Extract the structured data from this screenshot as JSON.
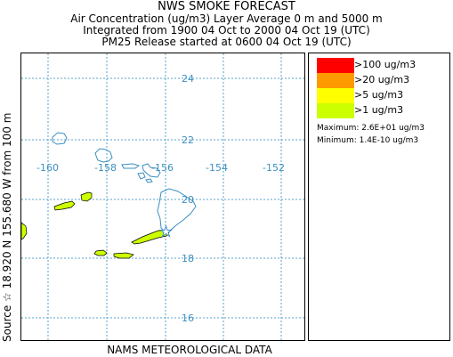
{
  "header": {
    "title": "NWS SMOKE FORECAST",
    "line2": "Air Concentration (ug/m3) Layer Average    0 m and  5000 m",
    "line3": "Integrated from 1900 04 Oct to 2000 04 Oct 19 (UTC)",
    "line4": "PM25 Release started at 0600 04 Oct 19 (UTC)"
  },
  "map": {
    "latitudes": [
      "24",
      "22",
      "20",
      "18",
      "16"
    ],
    "longitudes": [
      "-160",
      "-158",
      "-156",
      "-154",
      "-152"
    ],
    "gridline_color": "#5aa0cc",
    "coastline_color": "#3b8fc0",
    "plume_fill": "#ccff00"
  },
  "legend": {
    "items": [
      {
        "label": ">100 ug/m3",
        "color": "#ff0000"
      },
      {
        "label": ">20 ug/m3",
        "color": "#ff9900"
      },
      {
        "label": ">5 ug/m3",
        "color": "#ffff00"
      },
      {
        "label": ">1 ug/m3",
        "color": "#ccff00"
      }
    ],
    "maximum": "Maximum: 2.6E+01 ug/m3",
    "minimum": "Minimum: 1.4E-10 ug/m3"
  },
  "side_label": "Source ☆  18.920 N 155.680  W      from  100 m",
  "footer": "NAMS METEOROLOGICAL DATA"
}
